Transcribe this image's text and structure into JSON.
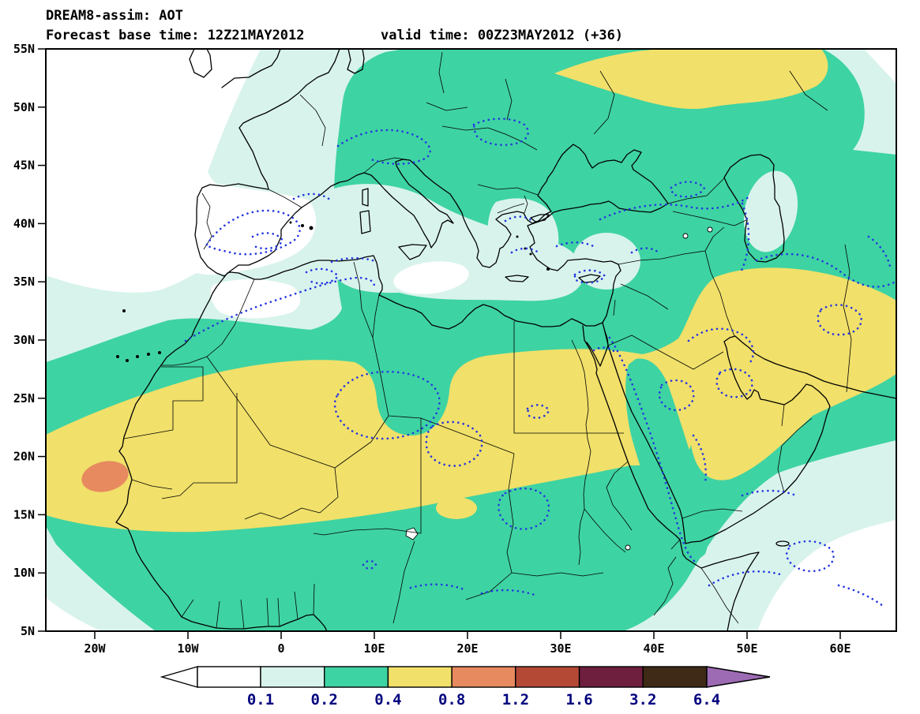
{
  "header": {
    "line1": "DREAM8-assim: AOT",
    "line2_left": "Forecast base time: 12Z21MAY2012",
    "line2_right": "valid time: 00Z23MAY2012 (+36)"
  },
  "axes": {
    "lat_ticks": [
      {
        "label": "55N",
        "value": 55
      },
      {
        "label": "50N",
        "value": 50
      },
      {
        "label": "45N",
        "value": 45
      },
      {
        "label": "40N",
        "value": 40
      },
      {
        "label": "35N",
        "value": 35
      },
      {
        "label": "30N",
        "value": 30
      },
      {
        "label": "25N",
        "value": 25
      },
      {
        "label": "20N",
        "value": 20
      },
      {
        "label": "15N",
        "value": 15
      },
      {
        "label": "10N",
        "value": 10
      },
      {
        "label": "5N",
        "value": 5
      }
    ],
    "lon_ticks": [
      {
        "label": "20W",
        "value": -20
      },
      {
        "label": "10W",
        "value": -10
      },
      {
        "label": "0",
        "value": 0
      },
      {
        "label": "10E",
        "value": 10
      },
      {
        "label": "20E",
        "value": 20
      },
      {
        "label": "30E",
        "value": 30
      },
      {
        "label": "40E",
        "value": 40
      },
      {
        "label": "50E",
        "value": 50
      },
      {
        "label": "60E",
        "value": 60
      }
    ]
  },
  "colorbar": {
    "labels": [
      "0.1",
      "0.2",
      "0.4",
      "0.8",
      "1.2",
      "1.6",
      "3.2",
      "6.4"
    ],
    "segment_colors": [
      "#d8f3ec",
      "#3ed3a2",
      "#f1e06a",
      "#e78a5f",
      "#b44a36",
      "#6e1f3e",
      "#3e2a16"
    ],
    "under_color": "#ffffff",
    "over_color": "#9c6bb4",
    "label_color": "#00007e"
  },
  "map": {
    "contour_levels": [
      0.1,
      0.2,
      0.4,
      0.8,
      1.2,
      1.6,
      3.2,
      6.4
    ],
    "fill_colors": {
      "aot_0.1_0.2": "#d8f3ec",
      "aot_0.2_0.4": "#3ed3a2",
      "aot_0.4_0.8": "#f1e06a",
      "aot_0.8_1.2": "#e78a5f"
    },
    "overlay_note": "blue dotted contour lines",
    "peak_note": "0.8-1.2 maximum off the West African coast near 18N 19W"
  }
}
